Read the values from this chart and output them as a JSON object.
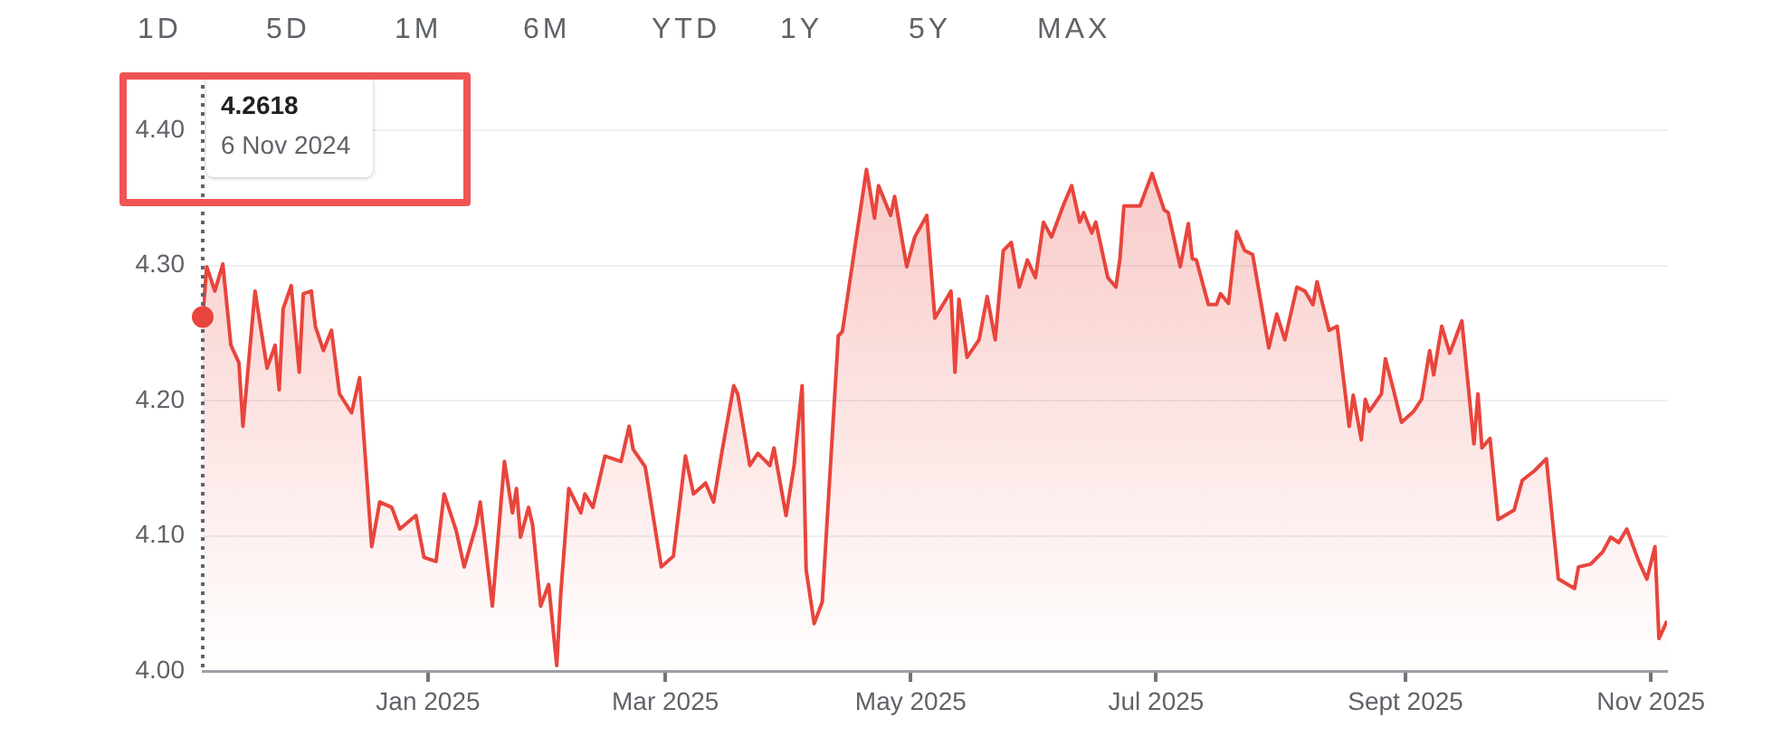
{
  "chart_data": {
    "type": "area",
    "color": "#e8453c",
    "x": [
      "2024-11-06",
      "2024-11-07",
      "2024-11-09",
      "2024-11-11",
      "2024-11-13",
      "2024-11-15",
      "2024-11-16",
      "2024-11-19",
      "2024-11-22",
      "2024-11-24",
      "2024-11-25",
      "2024-11-26",
      "2024-11-28",
      "2024-11-30",
      "2024-12-01",
      "2024-12-03",
      "2024-12-04",
      "2024-12-06",
      "2024-12-08",
      "2024-12-10",
      "2024-12-13",
      "2024-12-15",
      "2024-12-18",
      "2024-12-20",
      "2024-12-23",
      "2024-12-25",
      "2024-12-29",
      "2024-12-31",
      "2025-01-03",
      "2025-01-05",
      "2025-01-08",
      "2025-01-10",
      "2025-01-13",
      "2025-01-14",
      "2025-01-17",
      "2025-01-20",
      "2025-01-22",
      "2025-01-23",
      "2025-01-24",
      "2025-01-26",
      "2025-01-27",
      "2025-01-29",
      "2025-01-31",
      "2025-02-02",
      "2025-02-03",
      "2025-02-05",
      "2025-02-08",
      "2025-02-09",
      "2025-02-11",
      "2025-02-14",
      "2025-02-18",
      "2025-02-20",
      "2025-02-21",
      "2025-02-24",
      "2025-02-28",
      "2025-03-03",
      "2025-03-06",
      "2025-03-08",
      "2025-03-11",
      "2025-03-13",
      "2025-03-15",
      "2025-03-18",
      "2025-03-19",
      "2025-03-22",
      "2025-03-24",
      "2025-03-27",
      "2025-03-28",
      "2025-03-31",
      "2025-04-02",
      "2025-04-04",
      "2025-04-05",
      "2025-04-07",
      "2025-04-09",
      "2025-04-13",
      "2025-04-14",
      "2025-04-20",
      "2025-04-22",
      "2025-04-23",
      "2025-04-26",
      "2025-04-27",
      "2025-04-30",
      "2025-05-02",
      "2025-05-05",
      "2025-05-07",
      "2025-05-11",
      "2025-05-12",
      "2025-05-13",
      "2025-05-15",
      "2025-05-18",
      "2025-05-20",
      "2025-05-22",
      "2025-05-24",
      "2025-05-26",
      "2025-05-28",
      "2025-05-30",
      "2025-06-01",
      "2025-06-03",
      "2025-06-05",
      "2025-06-08",
      "2025-06-10",
      "2025-06-12",
      "2025-06-13",
      "2025-06-15",
      "2025-06-16",
      "2025-06-19",
      "2025-06-21",
      "2025-06-22",
      "2025-06-23",
      "2025-06-27",
      "2025-06-30",
      "2025-07-03",
      "2025-07-04",
      "2025-07-07",
      "2025-07-09",
      "2025-07-10",
      "2025-07-11",
      "2025-07-14",
      "2025-07-16",
      "2025-07-17",
      "2025-07-19",
      "2025-07-21",
      "2025-07-23",
      "2025-07-25",
      "2025-07-29",
      "2025-07-31",
      "2025-08-02",
      "2025-08-05",
      "2025-08-07",
      "2025-08-09",
      "2025-08-10",
      "2025-08-13",
      "2025-08-15",
      "2025-08-18",
      "2025-08-19",
      "2025-08-21",
      "2025-08-22",
      "2025-08-23",
      "2025-08-26",
      "2025-08-27",
      "2025-08-29",
      "2025-08-31",
      "2025-09-03",
      "2025-09-05",
      "2025-09-07",
      "2025-09-08",
      "2025-09-10",
      "2025-09-12",
      "2025-09-15",
      "2025-09-18",
      "2025-09-19",
      "2025-09-20",
      "2025-09-22",
      "2025-09-24",
      "2025-09-28",
      "2025-09-30",
      "2025-10-03",
      "2025-10-06",
      "2025-10-09",
      "2025-10-13",
      "2025-10-14",
      "2025-10-17",
      "2025-10-20",
      "2025-10-22",
      "2025-10-24",
      "2025-10-26",
      "2025-10-29",
      "2025-10-31",
      "2025-11-02",
      "2025-11-03",
      "2025-11-05"
    ],
    "values": [
      4.2618,
      4.299,
      4.281,
      4.301,
      4.241,
      4.228,
      4.181,
      4.281,
      4.224,
      4.241,
      4.208,
      4.268,
      4.285,
      4.221,
      4.279,
      4.281,
      4.255,
      4.237,
      4.252,
      4.205,
      4.191,
      4.217,
      4.092,
      4.125,
      4.121,
      4.105,
      4.115,
      4.084,
      4.081,
      4.131,
      4.104,
      4.077,
      4.108,
      4.125,
      4.048,
      4.155,
      4.117,
      4.135,
      4.099,
      4.121,
      4.108,
      4.048,
      4.064,
      4.004,
      4.057,
      4.135,
      4.117,
      4.131,
      4.121,
      4.159,
      4.155,
      4.181,
      4.164,
      4.151,
      4.077,
      4.085,
      4.159,
      4.131,
      4.139,
      4.125,
      4.161,
      4.211,
      4.205,
      4.152,
      4.161,
      4.152,
      4.165,
      4.115,
      4.152,
      4.211,
      4.075,
      4.035,
      4.051,
      4.248,
      4.251,
      4.371,
      4.335,
      4.359,
      4.337,
      4.351,
      4.299,
      4.321,
      4.337,
      4.261,
      4.281,
      4.221,
      4.275,
      4.232,
      4.245,
      4.277,
      4.245,
      4.311,
      4.317,
      4.284,
      4.304,
      4.291,
      4.332,
      4.321,
      4.345,
      4.359,
      4.332,
      4.339,
      4.324,
      4.332,
      4.291,
      4.284,
      4.305,
      4.344,
      4.344,
      4.368,
      4.341,
      4.339,
      4.299,
      4.331,
      4.305,
      4.304,
      4.271,
      4.271,
      4.279,
      4.272,
      4.325,
      4.311,
      4.308,
      4.239,
      4.264,
      4.245,
      4.284,
      4.281,
      4.271,
      4.288,
      4.252,
      4.255,
      4.181,
      4.204,
      4.171,
      4.201,
      4.192,
      4.205,
      4.231,
      4.208,
      4.184,
      4.192,
      4.201,
      4.237,
      4.219,
      4.255,
      4.235,
      4.259,
      4.168,
      4.205,
      4.165,
      4.172,
      4.112,
      4.119,
      4.141,
      4.148,
      4.157,
      4.068,
      4.061,
      4.077,
      4.079,
      4.088,
      4.099,
      4.095,
      4.105,
      4.081,
      4.068,
      4.092,
      4.024,
      4.037
    ],
    "xlim": [
      "2024-11-06",
      "2025-11-05"
    ],
    "xticks": [
      {
        "value": "2025-01-01",
        "label": "Jan 2025"
      },
      {
        "value": "2025-03-01",
        "label": "Mar 2025"
      },
      {
        "value": "2025-05-01",
        "label": "May 2025"
      },
      {
        "value": "2025-07-01",
        "label": "Jul 2025"
      },
      {
        "value": "2025-09-01",
        "label": "Sept 2025"
      },
      {
        "value": "2025-11-01",
        "label": "Nov 2025"
      }
    ],
    "ylim": [
      4.0,
      4.4
    ],
    "yticks": [
      {
        "value": 4.0,
        "label": "4.00"
      },
      {
        "value": 4.1,
        "label": "4.10"
      },
      {
        "value": 4.2,
        "label": "4.20"
      },
      {
        "value": 4.3,
        "label": "4.30"
      },
      {
        "value": 4.4,
        "label": "4.40"
      }
    ],
    "grid": "y",
    "ref_lines": [
      {
        "axis": "x",
        "value": "2024-11-06",
        "color": "#5f6368",
        "line_style": "dotted"
      }
    ],
    "annotations": [
      "4.2618",
      "6 Nov 2024",
      "1D",
      "5D",
      "1M",
      "6M",
      "YTD",
      "1Y",
      "5Y",
      "MAX"
    ]
  }
}
